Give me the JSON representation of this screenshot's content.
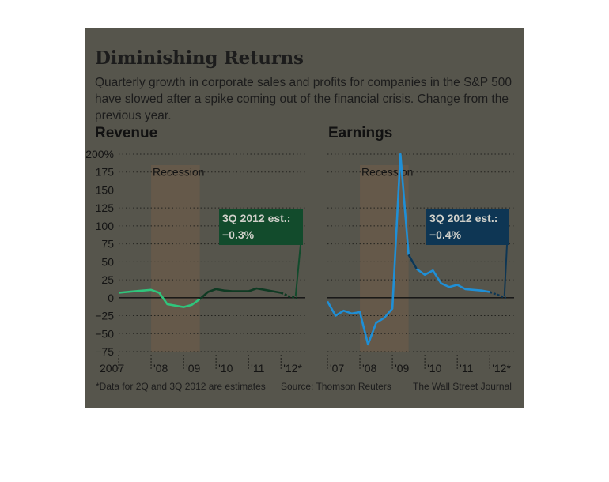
{
  "title": "Diminishing Returns",
  "subtitle": "Quarterly growth in corporate sales and profits for companies in the S&P 500 have slowed after a spike coming out of the financial crisis. Change from the previous year.",
  "footnote": "*Data for 2Q and 3Q 2012 are estimates",
  "source": "Source: Thomson Reuters",
  "credit": "The Wall Street Journal",
  "chart_data": [
    {
      "type": "line",
      "title": "Revenue",
      "ylim": [
        -75,
        200
      ],
      "yticks": [
        -75,
        -50,
        -25,
        0,
        25,
        50,
        75,
        100,
        125,
        150,
        175,
        200
      ],
      "ytick_labels": [
        "−75",
        "−50",
        "−25",
        "0",
        "25",
        "50",
        "75",
        "100",
        "125",
        "150",
        "175",
        "200%"
      ],
      "xlim": [
        2007.0,
        2012.75
      ],
      "xticks": [
        2007.0,
        2008.0,
        2009.0,
        2010.0,
        2011.0,
        2012.0
      ],
      "xtick_labels": [
        "2007",
        "'08",
        "'09",
        "'10",
        "'11",
        "'12*"
      ],
      "recession": {
        "label": "Recession",
        "start": 2008.0,
        "end": 2009.5
      },
      "annotation": {
        "label": "3Q 2012 est.:",
        "value": "−0.3%"
      },
      "grid": true,
      "colors": {
        "recession_line": "#2fc57c",
        "line": "#0f3a23",
        "estimate": "#0f3a23",
        "callout": "#124b2c"
      },
      "series": [
        {
          "x": [
            2007.0,
            2007.25,
            2007.5,
            2007.75,
            2008.0,
            2008.25,
            2008.5,
            2008.75,
            2009.0,
            2009.25,
            2009.5,
            2009.75,
            2010.0,
            2010.25,
            2010.5,
            2010.75,
            2011.0,
            2011.25,
            2011.5,
            2011.75,
            2012.0,
            2012.25,
            2012.5
          ],
          "values": [
            7,
            8,
            9,
            10,
            11,
            7,
            -9,
            -11,
            -13,
            -10,
            -2,
            8,
            12,
            10,
            9,
            9,
            9,
            13,
            11,
            9,
            7,
            2,
            -0.3
          ]
        }
      ]
    },
    {
      "type": "line",
      "title": "Earnings",
      "ylim": [
        -75,
        200
      ],
      "yticks": [
        -75,
        -50,
        -25,
        0,
        25,
        50,
        75,
        100,
        125,
        150,
        175,
        200
      ],
      "xlim": [
        2007.0,
        2012.75
      ],
      "xticks": [
        2007.0,
        2008.0,
        2009.0,
        2010.0,
        2011.0,
        2012.0
      ],
      "xtick_labels": [
        "'07",
        "'08",
        "'09",
        "'10",
        "'11",
        "'12*"
      ],
      "recession": {
        "label": "Recession",
        "start": 2008.0,
        "end": 2009.5
      },
      "annotation": {
        "label": "3Q 2012 est.:",
        "value": "−0.4%"
      },
      "grid": true,
      "colors": {
        "line": "#1f8fd6",
        "post": "#0e3654",
        "estimate": "#0e3654",
        "callout": "#0e3654"
      },
      "series": [
        {
          "x": [
            2007.0,
            2007.25,
            2007.5,
            2007.75,
            2008.0,
            2008.25,
            2008.5,
            2008.75,
            2009.0,
            2009.25,
            2009.5,
            2009.75,
            2010.0,
            2010.25,
            2010.5,
            2010.75,
            2011.0,
            2011.25,
            2011.5,
            2011.75,
            2012.0,
            2012.25,
            2012.5
          ],
          "values": [
            -5,
            -25,
            -18,
            -22,
            -20,
            -65,
            -35,
            -28,
            -15,
            200,
            60,
            40,
            32,
            38,
            20,
            15,
            18,
            12,
            11,
            10,
            8,
            4,
            -0.4
          ]
        }
      ]
    }
  ]
}
